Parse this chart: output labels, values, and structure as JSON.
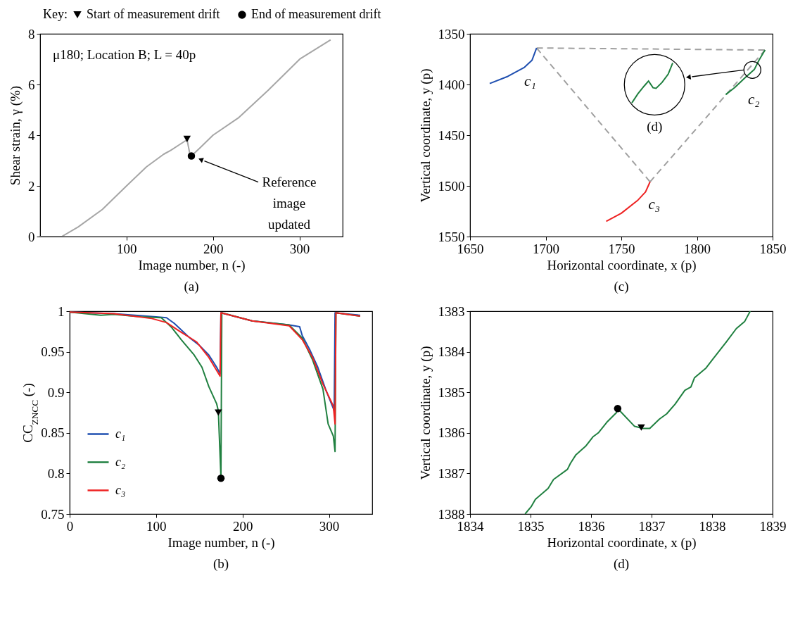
{
  "chart_data": [
    {
      "type": "line",
      "title": "(a)",
      "xlabel": "Image number, n (-)",
      "ylabel": "Shear strain, γ (%)",
      "xlim": [
        0,
        350
      ],
      "xticks": [
        100,
        200,
        300
      ],
      "ylim": [
        0,
        8
      ],
      "yticks": [
        0,
        2,
        4,
        6,
        8
      ],
      "legend": "top",
      "legend_title": "Key:",
      "annotations": [
        "μ180; Location B; L = 40p",
        "Reference image updated"
      ],
      "series": [
        {
          "color": "#a6a6a6",
          "x": [
            0,
            25,
            44,
            72,
            100,
            123,
            143,
            151,
            170,
            173,
            175,
            185,
            200,
            230,
            264,
            301,
            336
          ],
          "values": [
            0,
            0,
            0.38,
            1.07,
            2.0,
            2.75,
            3.25,
            3.4,
            3.82,
            3.3,
            3.18,
            3.5,
            4.0,
            4.7,
            5.78,
            7.02,
            7.76
          ]
        },
        {
          "type": "scatter",
          "name": "Start of measurement drift",
          "marker": "triangle",
          "color": "#000000",
          "x": [
            170
          ],
          "values": [
            3.85
          ]
        },
        {
          "type": "scatter",
          "name": "End of measurement drift",
          "marker": "circle",
          "color": "#000000",
          "x": [
            175
          ],
          "values": [
            3.18
          ]
        }
      ]
    },
    {
      "type": "line",
      "title": "(c)",
      "xlabel": "Horizontal coordinate, x (p)",
      "ylabel": "Vertical coordinate, y (p)",
      "xlim": [
        1650,
        1850
      ],
      "xticks": [
        1650,
        1700,
        1750,
        1800,
        1850
      ],
      "ylim": [
        1550,
        1350
      ],
      "yticks": [
        1350,
        1400,
        1450,
        1500,
        1550
      ],
      "annotations": [
        "(d)"
      ],
      "series": [
        {
          "color": "#a0a0a0",
          "line_style": "dashed",
          "x": [
            1694,
            1845
          ],
          "values": [
            1364,
            1366
          ]
        },
        {
          "color": "#a0a0a0",
          "line_style": "dashed",
          "x": [
            1694,
            1769
          ],
          "values": [
            1364,
            1496
          ]
        },
        {
          "color": "#a0a0a0",
          "line_style": "dashed",
          "x": [
            1769,
            1845
          ],
          "values": [
            1496,
            1366
          ]
        },
        {
          "name": "c₁",
          "color": "#1f4fb0",
          "x": [
            1663,
            1675,
            1686,
            1691,
            1694
          ],
          "values": [
            1399,
            1392,
            1383,
            1376,
            1364
          ]
        },
        {
          "name": "c₂",
          "color": "#208040",
          "x": [
            1819,
            1825,
            1832,
            1838,
            1841,
            1845
          ],
          "values": [
            1410,
            1403,
            1393,
            1385,
            1376,
            1366
          ]
        },
        {
          "name": "c₃",
          "color": "#ee2222",
          "x": [
            1740,
            1750,
            1761,
            1766,
            1769
          ],
          "values": [
            1535,
            1527,
            1514,
            1506,
            1496
          ]
        }
      ]
    },
    {
      "type": "line",
      "title": "(b)",
      "xlabel": "Image number, n (-)",
      "ylabel": "CC$_{ZNCC}$ (-)",
      "xlim": [
        0,
        350
      ],
      "xticks": [
        0,
        100,
        200,
        300
      ],
      "ylim": [
        0.75,
        1
      ],
      "yticks": [
        0.75,
        0.8,
        0.85,
        0.9,
        0.95,
        1
      ],
      "legend": "bottom left",
      "series": [
        {
          "name": "c₁",
          "color": "#1f4fb0",
          "x": [
            0,
            51,
            100,
            112,
            121,
            129,
            138,
            150,
            161,
            170,
            174,
            175,
            211,
            254,
            266,
            269,
            278,
            287,
            296,
            305,
            306,
            307,
            336
          ],
          "values": [
            0.999,
            0.997,
            0.993,
            0.992,
            0.985,
            0.977,
            0.968,
            0.958,
            0.946,
            0.931,
            0.923,
            0.998,
            0.988,
            0.983,
            0.981,
            0.97,
            0.952,
            0.931,
            0.904,
            0.88,
            0.877,
            0.998,
            0.995
          ]
        },
        {
          "name": "c₂",
          "color": "#208040",
          "x": [
            0,
            36,
            51,
            83,
            106,
            118,
            129,
            144,
            153,
            161,
            170,
            172,
            173,
            175,
            176,
            211,
            254,
            269,
            281,
            293,
            299,
            305,
            307,
            308,
            336
          ],
          "values": [
            0.999,
            0.995,
            0.996,
            0.993,
            0.992,
            0.98,
            0.965,
            0.946,
            0.931,
            0.907,
            0.886,
            0.877,
            0.849,
            0.795,
            0.998,
            0.988,
            0.983,
            0.967,
            0.94,
            0.904,
            0.861,
            0.846,
            0.827,
            0.998,
            0.994
          ]
        },
        {
          "name": "c₃",
          "color": "#ee2222",
          "x": [
            0,
            51,
            95,
            112,
            129,
            147,
            161,
            174,
            175,
            211,
            254,
            269,
            281,
            293,
            305,
            307,
            308,
            336
          ],
          "values": [
            0.999,
            0.997,
            0.991,
            0.986,
            0.974,
            0.962,
            0.943,
            0.92,
            0.998,
            0.988,
            0.982,
            0.965,
            0.943,
            0.91,
            0.883,
            0.861,
            0.998,
            0.994
          ]
        },
        {
          "type": "scatter",
          "marker": "triangle",
          "color": "#000000",
          "x": [
            172
          ],
          "values": [
            0.875
          ]
        },
        {
          "type": "scatter",
          "marker": "circle",
          "color": "#000000",
          "x": [
            175
          ],
          "values": [
            0.794
          ]
        }
      ]
    },
    {
      "type": "line",
      "title": "(d)",
      "xlabel": "Horizontal coordinate, x (p)",
      "ylabel": "Vertical coordinate, y (p)",
      "xlim": [
        1834,
        1839
      ],
      "xticks": [
        1834,
        1835,
        1836,
        1837,
        1838,
        1839
      ],
      "ylim": [
        1388,
        1383
      ],
      "yticks": [
        1383,
        1384,
        1385,
        1386,
        1387,
        1388
      ],
      "series": [
        {
          "color": "#208040",
          "x": [
            1834.91,
            1835.01,
            1835.08,
            1835.29,
            1835.38,
            1835.61,
            1835.66,
            1835.75,
            1835.91,
            1836.03,
            1836.12,
            1836.26,
            1836.42,
            1836.44,
            1836.72,
            1836.86,
            1836.97,
            1837.13,
            1837.25,
            1837.39,
            1837.55,
            1837.65,
            1837.71,
            1837.9,
            1838.06,
            1838.24,
            1838.4,
            1838.54,
            1838.63
          ],
          "values": [
            1388,
            1387.82,
            1387.64,
            1387.37,
            1387.15,
            1386.9,
            1386.75,
            1386.54,
            1386.33,
            1386.1,
            1386.0,
            1385.74,
            1385.5,
            1385.4,
            1385.84,
            1385.89,
            1385.89,
            1385.66,
            1385.53,
            1385.29,
            1384.95,
            1384.87,
            1384.64,
            1384.4,
            1384.09,
            1383.75,
            1383.43,
            1383.25,
            1383.0
          ]
        },
        {
          "type": "scatter",
          "marker": "circle",
          "color": "#000000",
          "x": [
            1836.44
          ],
          "values": [
            1385.4
          ]
        },
        {
          "type": "scatter",
          "marker": "triangle",
          "color": "#000000",
          "x": [
            1836.83
          ],
          "values": [
            1385.87
          ]
        }
      ]
    }
  ]
}
